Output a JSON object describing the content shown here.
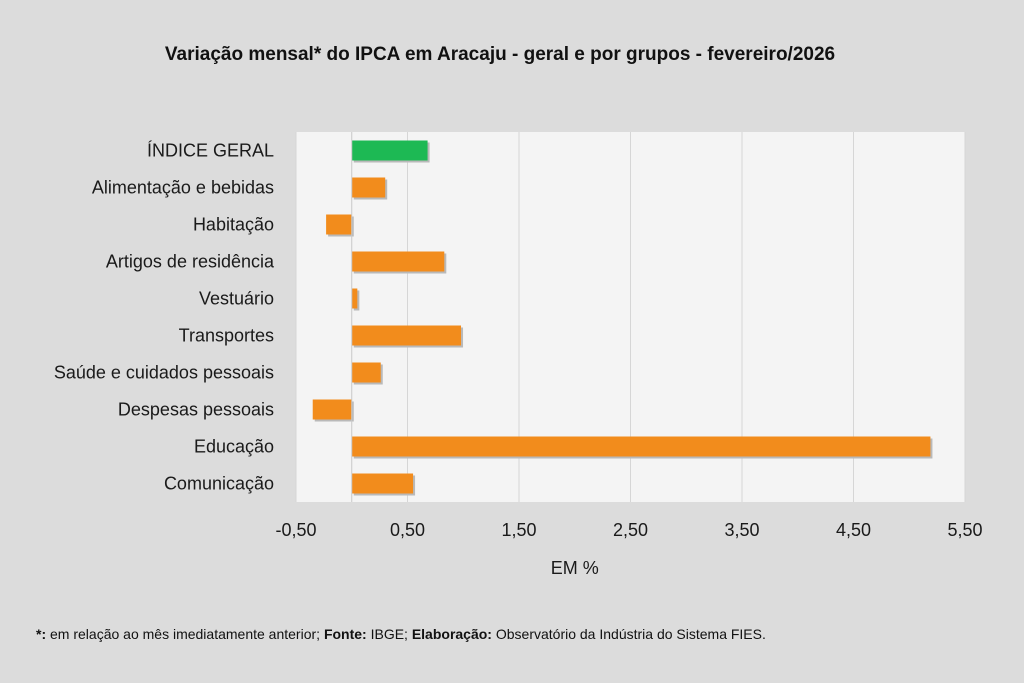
{
  "chart_data": {
    "type": "bar",
    "orientation": "horizontal",
    "title": "Variação  mensal*  do  IPCA  em  Aracaju   - geral  e  por  grupos   - fevereiro/2026",
    "xlabel": "EM %",
    "categories": [
      "ÍNDICE GERAL",
      "Alimentação e bebidas",
      "Habitação",
      "Artigos de residência",
      "Vestuário",
      "Transportes",
      "Saúde e cuidados pessoais",
      "Despesas pessoais",
      "Educação",
      "Comunicação"
    ],
    "values": [
      0.68,
      0.3,
      -0.23,
      0.83,
      0.05,
      0.98,
      0.26,
      -0.35,
      5.19,
      0.55
    ],
    "highlight_category": "ÍNDICE GERAL",
    "xlim": [
      -0.5,
      5.5
    ],
    "xticks": [
      -0.5,
      0.5,
      1.5,
      2.5,
      3.5,
      4.5,
      5.5
    ],
    "xtick_labels": [
      "-0,50",
      "0,50",
      "1,50",
      "2,50",
      "3,50",
      "4,50",
      "5,50"
    ],
    "grid": "vertical",
    "colors": {
      "bar": "#f28c1c",
      "highlight": "#1db954",
      "plot_bg": "#f4f4f4",
      "grid": "#d6d6d6"
    }
  },
  "footnote": {
    "mark": "*:",
    "text1": " em relação ao mês imediatamente  anterior; ",
    "source_label": "Fonte:",
    "source_text": " IBGE; ",
    "credit_label": "Elaboração:",
    "credit_text": " Observatório da Indústria do Sistema FIES."
  }
}
